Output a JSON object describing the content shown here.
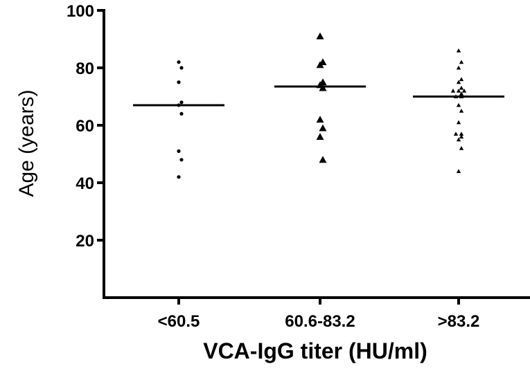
{
  "chart_data": {
    "type": "scatter",
    "xlabel": "VCA-IgG titer (HU/ml)",
    "ylabel": "Age (years)",
    "ylim": [
      0,
      100
    ],
    "yticks": [
      20,
      40,
      60,
      80,
      100
    ],
    "categories": [
      "<60.5",
      "60.6-83.2",
      ">83.2"
    ],
    "groups": [
      {
        "category": "<60.5",
        "marker": "circle",
        "values": [
          82,
          80,
          75,
          68,
          67,
          64,
          51,
          48,
          42
        ],
        "mean": 67
      },
      {
        "category": "60.6-83.2",
        "marker": "triangle-large",
        "values": [
          91,
          82,
          81,
          75,
          74,
          73,
          62,
          59,
          56,
          48
        ],
        "mean": 73.5
      },
      {
        "category": ">83.2",
        "marker": "triangle-small",
        "values": [
          86,
          82,
          80,
          76,
          75,
          73,
          72,
          72,
          72,
          71,
          70,
          70,
          67,
          65,
          61,
          57,
          57,
          56,
          55,
          52,
          44
        ],
        "mean": 70
      }
    ],
    "grid": false,
    "legend": "none"
  }
}
